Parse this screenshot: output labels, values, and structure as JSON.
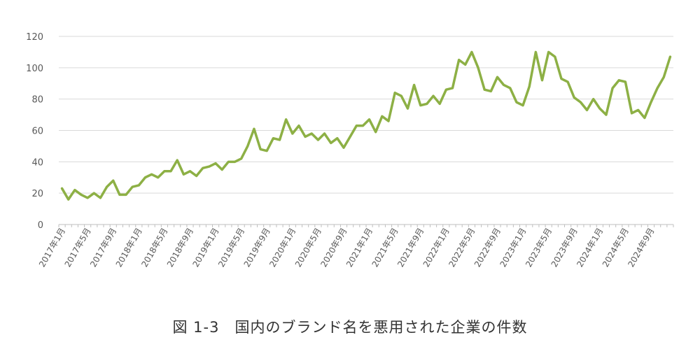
{
  "caption": "図 1-3　国内のブランド名を悪用された企業の件数",
  "chart_data": {
    "type": "line",
    "title": "",
    "xlabel": "",
    "ylabel": "",
    "ylim": [
      0,
      120
    ],
    "y_ticks": [
      0,
      20,
      40,
      60,
      80,
      100,
      120
    ],
    "grid": true,
    "x_tick_labels": [
      "2017年1月",
      "2017年5月",
      "2017年9月",
      "2018年1月",
      "2018年5月",
      "2018年9月",
      "2019年1月",
      "2019年5月",
      "2019年9月",
      "2020年1月",
      "2020年5月",
      "2020年9月",
      "2021年1月",
      "2021年5月",
      "2021年9月",
      "2022年1月",
      "2022年5月",
      "2022年9月",
      "2023年1月",
      "2023年5月",
      "2023年9月",
      "2024年1月",
      "2024年5月",
      "2024年9月"
    ],
    "x_start": "2017-01",
    "color": "#8db045",
    "series": [
      {
        "values": [
          23,
          16,
          22,
          19,
          17,
          20,
          17,
          24,
          28,
          19,
          19,
          24,
          25,
          30,
          32,
          30,
          34,
          34,
          41,
          32,
          34,
          31,
          36,
          37,
          39,
          35,
          40,
          40,
          42,
          50,
          61,
          48,
          47,
          55,
          54,
          67,
          58,
          63,
          56,
          58,
          54,
          58,
          52,
          55,
          49,
          56,
          63,
          63,
          67,
          59,
          69,
          66,
          84,
          82,
          74,
          89,
          76,
          77,
          82,
          77,
          86,
          87,
          105,
          102,
          110,
          100,
          86,
          85,
          94,
          89,
          87,
          78,
          76,
          88,
          110,
          92,
          110,
          107,
          93,
          91,
          81,
          78,
          73,
          80,
          74,
          70,
          87,
          92,
          91,
          71,
          73,
          68,
          78,
          87,
          94,
          107
        ]
      }
    ]
  }
}
